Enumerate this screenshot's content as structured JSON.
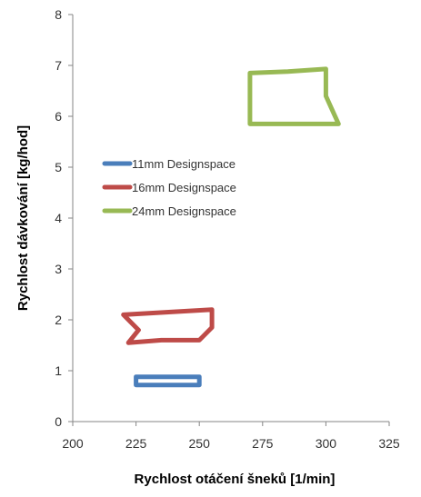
{
  "chart_data": {
    "type": "line",
    "title": "",
    "xlabel": "Rychlost otáčení šneků [1/min]",
    "ylabel": "Rychlost dávkování [kg/hod]",
    "xlim": [
      200,
      325
    ],
    "ylim": [
      0,
      8
    ],
    "xticks": [
      200,
      225,
      250,
      275,
      300,
      325
    ],
    "yticks": [
      0,
      1,
      2,
      3,
      4,
      5,
      6,
      7,
      8
    ],
    "grid": false,
    "legend_position": "center-left",
    "series": [
      {
        "name": "11mm Designspace",
        "color": "#4a7ebb",
        "x": [
          225,
          225,
          250,
          250,
          225
        ],
        "y": [
          0.72,
          0.88,
          0.88,
          0.72,
          0.72
        ]
      },
      {
        "name": "16mm Designspace",
        "color": "#be4b48",
        "x": [
          220,
          255,
          255,
          250,
          235,
          222,
          226,
          220
        ],
        "y": [
          2.1,
          2.2,
          1.85,
          1.6,
          1.6,
          1.55,
          1.8,
          2.1
        ]
      },
      {
        "name": "24mm Designspace",
        "color": "#98b954",
        "x": [
          270,
          285,
          300,
          300,
          305,
          270,
          270
        ],
        "y": [
          6.85,
          6.88,
          6.93,
          6.4,
          5.85,
          5.85,
          6.85
        ]
      }
    ]
  }
}
